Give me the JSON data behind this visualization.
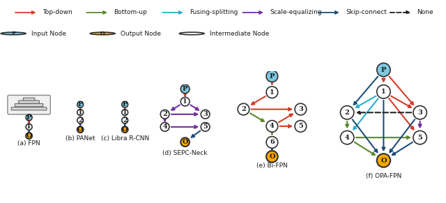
{
  "legend_arrows": [
    {
      "label": "Top-down",
      "color": "#d63c2a",
      "linestyle": "solid"
    },
    {
      "label": "Bottom-up",
      "color": "#5a8a2a",
      "linestyle": "solid"
    },
    {
      "label": "Fusing-splitting",
      "color": "#2ab0c8",
      "linestyle": "solid"
    },
    {
      "label": "Scale-equalizing",
      "color": "#7030a0",
      "linestyle": "solid"
    },
    {
      "label": "Skip-connect",
      "color": "#1f4e79",
      "linestyle": "solid"
    },
    {
      "label": "None",
      "color": "#222222",
      "linestyle": "dashed"
    }
  ],
  "node_colors": {
    "input": "#7ec8e0",
    "output": "#f5a800",
    "intermediate": "#ffffff"
  },
  "subgraph_titles": [
    "(a) FPN",
    "(b) PANet",
    "(c) Libra R-CNN",
    "(d) SEPC-Neck",
    "(e) Bi-FPN",
    "(f) OPA-FPN"
  ],
  "arrow_colors": {
    "top_down": "#d63c2a",
    "bottom_up": "#5a8a2a",
    "fusing": "#2ab0c8",
    "scale": "#7030a0",
    "skip": "#1f4e79",
    "none": "#222222"
  }
}
